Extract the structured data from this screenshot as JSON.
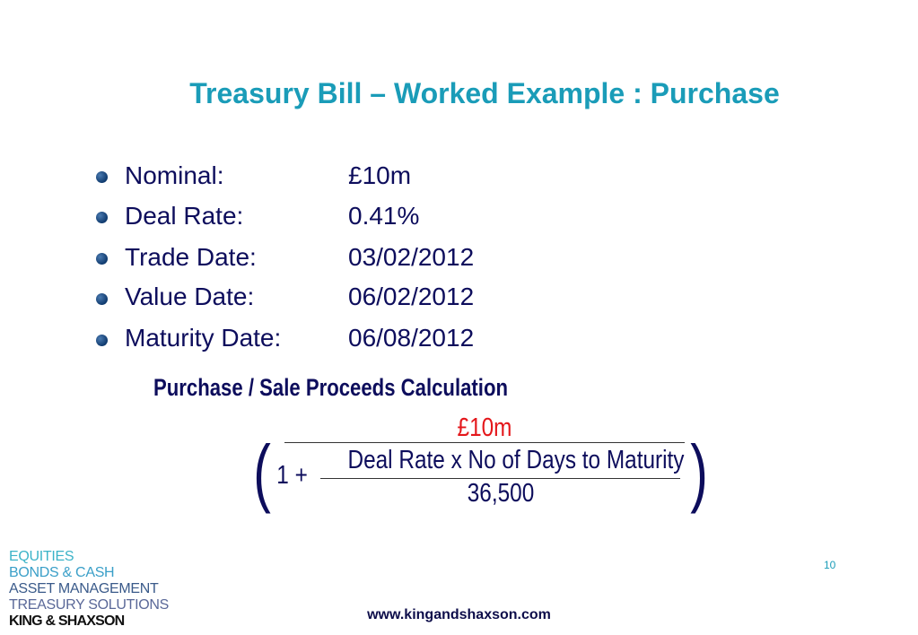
{
  "title": "Treasury Bill – Worked Example : Purchase",
  "details": [
    {
      "label": "Nominal:",
      "value": "£10m"
    },
    {
      "label": "Deal Rate:",
      "value": "0.41%"
    },
    {
      "label": "Trade Date:",
      "value": "03/02/2012"
    },
    {
      "label": "Value Date:",
      "value": "06/02/2012"
    },
    {
      "label": "Maturity Date:",
      "value": "06/08/2012"
    }
  ],
  "calculation": {
    "heading": "Purchase / Sale Proceeds Calculation",
    "numerator": "£10m",
    "one_plus": "1 +",
    "inner_numerator": "Deal Rate x No of Days to Maturity",
    "inner_denominator": "36,500",
    "open_paren": "(",
    "close_paren": ")"
  },
  "page_number": "10",
  "website": "www.kingandshaxson.com",
  "logo": {
    "lines": [
      "EQUITIES",
      "BONDS & CASH",
      "ASSET MANAGEMENT",
      "TREASURY SOLUTIONS"
    ],
    "brand": "KING & SHAXSON"
  },
  "colors": {
    "title": "#1a9cb8",
    "text": "#0d0d5c",
    "numerator": "#e4171b"
  }
}
